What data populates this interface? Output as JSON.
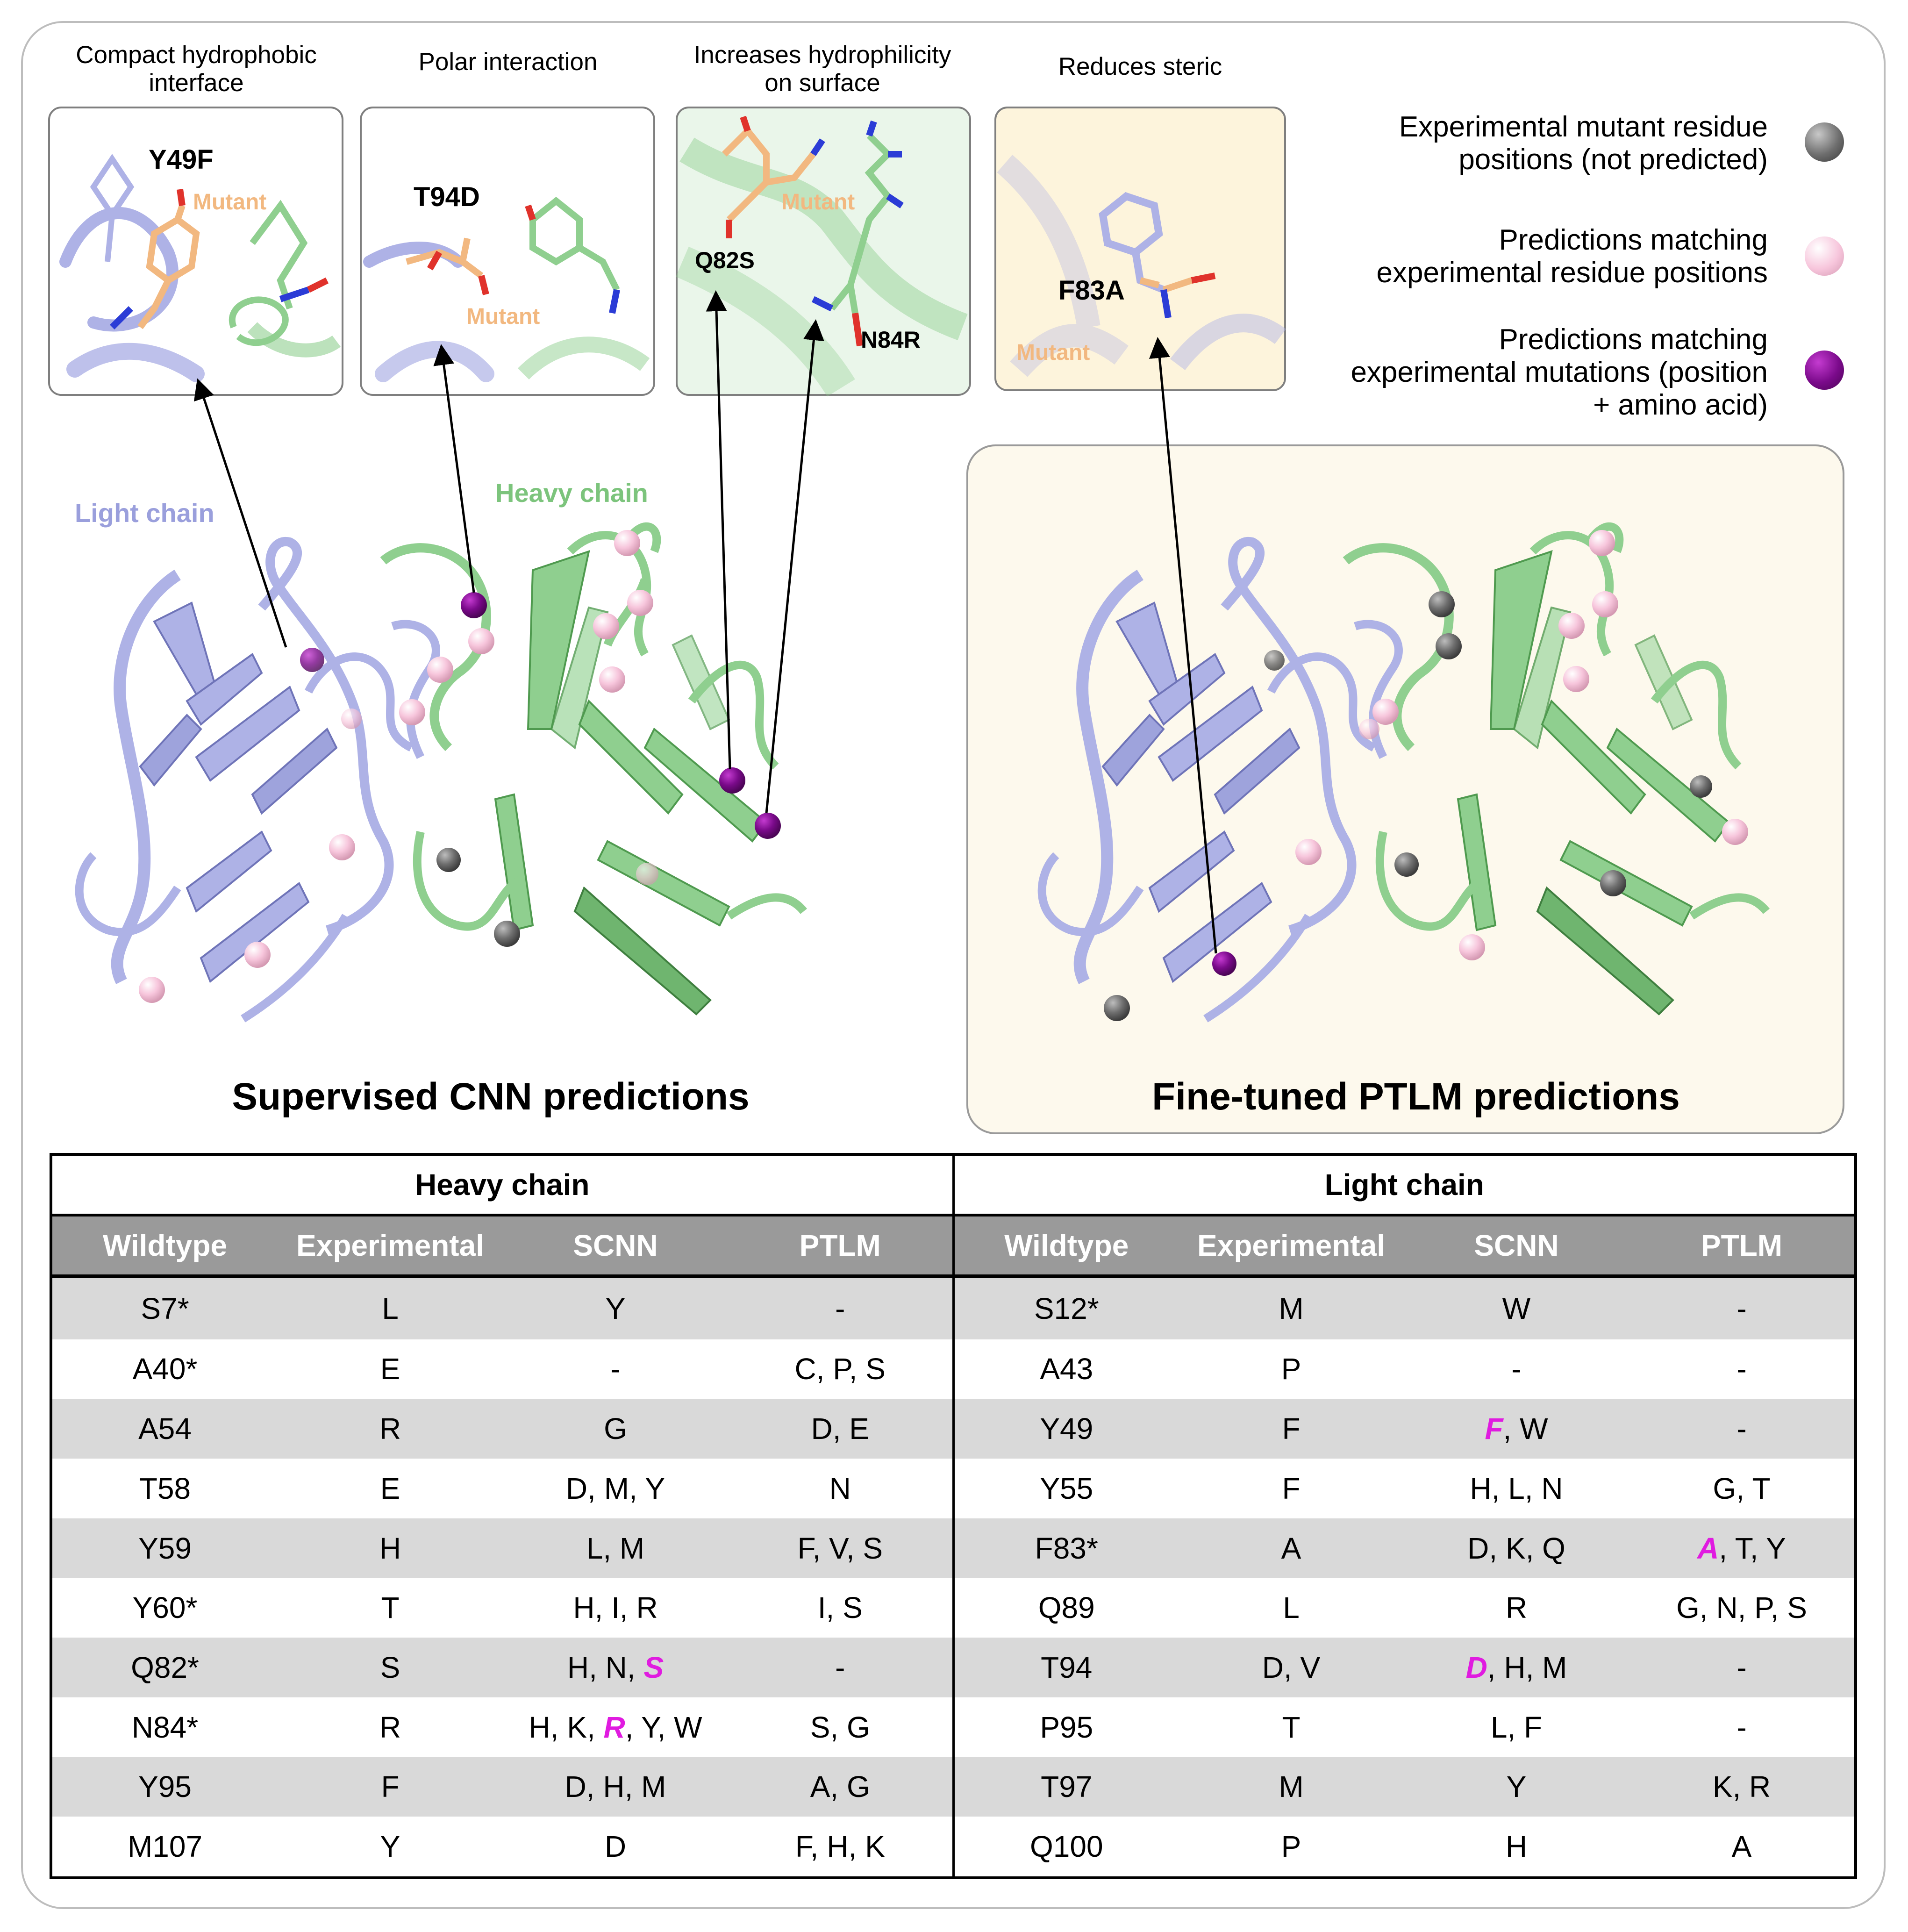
{
  "panel_titles": {
    "p1": [
      "Compact hydrophobic",
      "interface"
    ],
    "p2": [
      "Polar interaction"
    ],
    "p3": [
      "Increases hydrophilicity",
      "on surface"
    ],
    "p4": [
      "Reduces steric"
    ]
  },
  "panel_labels": {
    "y49f": "Y49F",
    "t94d": "T94D",
    "q82s": "Q82S",
    "n84r": "N84R",
    "f83a": "F83A",
    "mutant": "Mutant"
  },
  "structure_labels": {
    "light_chain": "Light chain",
    "heavy_chain": "Heavy chain"
  },
  "legend": [
    {
      "lines": [
        "Experimental mutant residue",
        "positions (not predicted)"
      ],
      "color": "#6e6e6e"
    },
    {
      "lines": [
        "Predictions matching",
        "experimental residue positions"
      ],
      "color": "#f7c6dc"
    },
    {
      "lines": [
        "Predictions matching",
        "experimental mutations (position",
        "+ amino acid)"
      ],
      "color": "#7a0a8a"
    }
  ],
  "section_titles": {
    "cnn": "Supervised CNN predictions",
    "ptlm": "Fine-tuned PTLM predictions"
  },
  "colors": {
    "light_chain": "#aeb2e6",
    "heavy_chain": "#8fcf8f",
    "mutant": "#f2b880",
    "highlight": "#e01be0",
    "ptlm_bg": "#fdf9ed"
  },
  "table": {
    "groups": [
      "Heavy chain",
      "Light chain"
    ],
    "headers": [
      "Wildtype",
      "Experimental",
      "SCNN",
      "PTLM",
      "Wildtype",
      "Experimental",
      "SCNN",
      "PTLM"
    ],
    "rows": [
      [
        "S7*",
        "L",
        "Y",
        "-",
        "S12*",
        "M",
        "W",
        "-"
      ],
      [
        "A40*",
        "E",
        "-",
        "C, P, S",
        "A43",
        "P",
        "-",
        "-"
      ],
      [
        "A54",
        "R",
        "G",
        "D, E",
        "Y49",
        "F",
        "F, W",
        "-"
      ],
      [
        "T58",
        "E",
        "D, M, Y",
        "N",
        "Y55",
        "F",
        "H, L, N",
        "G, T"
      ],
      [
        "Y59",
        "H",
        "L, M",
        "F, V, S",
        "F83*",
        "A",
        "D, K, Q",
        "A, T, Y"
      ],
      [
        "Y60*",
        "T",
        "H, I, R",
        "I, S",
        "Q89",
        "L",
        "R",
        "G, N, P, S"
      ],
      [
        "Q82*",
        "S",
        "H, N, S",
        "-",
        "T94",
        "D, V",
        "D, H, M",
        "-"
      ],
      [
        "N84*",
        "R",
        "H, K, R, Y, W",
        "S, G",
        "P95",
        "T",
        "L, F",
        "-"
      ],
      [
        "Y95",
        "F",
        "D, H, M",
        "A, G",
        "T97",
        "M",
        "Y",
        "K, R"
      ],
      [
        "M107",
        "Y",
        "D",
        "F, H, K",
        "Q100",
        "P",
        "H",
        "A"
      ]
    ],
    "highlights": [
      {
        "row": 2,
        "col": 6,
        "token": "F"
      },
      {
        "row": 4,
        "col": 7,
        "token": "A"
      },
      {
        "row": 6,
        "col": 2,
        "token": "S"
      },
      {
        "row": 6,
        "col": 6,
        "token": "D"
      },
      {
        "row": 7,
        "col": 2,
        "token": "R"
      }
    ]
  }
}
